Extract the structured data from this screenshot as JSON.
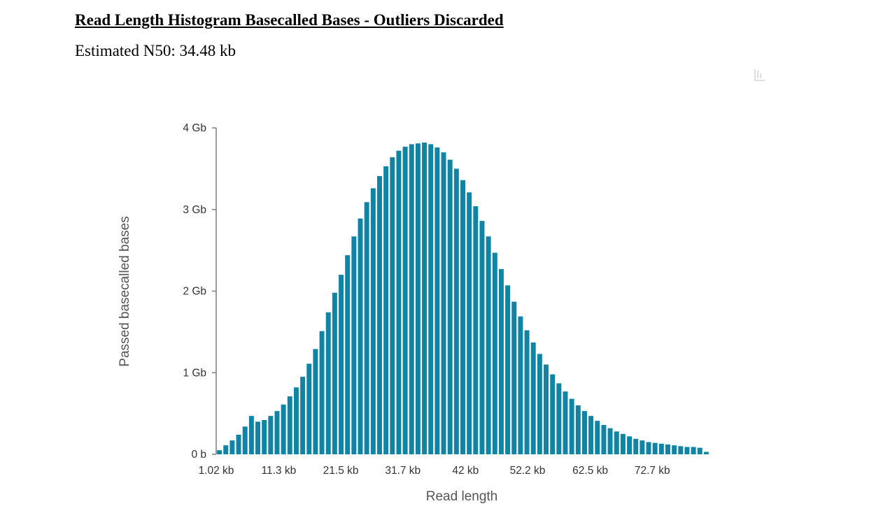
{
  "report": {
    "title": "Read Length Histogram Basecalled Bases - Outliers Discarded",
    "n50_label": "Estimated N50:",
    "n50_value": "34.48 kb"
  },
  "icons": {
    "corner_widget": "chart-tool-icon"
  },
  "colors": {
    "bar": "#0f84a4",
    "axis": "#7f7f7f"
  },
  "chart_data": {
    "type": "bar",
    "xlabel": "Read length",
    "ylabel": "Passed basecalled bases",
    "x_unit": "kb",
    "y_unit": "Gb",
    "ylim": [
      0,
      4
    ],
    "y_ticks": [
      {
        "value": 0,
        "label": "0 b"
      },
      {
        "value": 1,
        "label": "1 Gb"
      },
      {
        "value": 2,
        "label": "2 Gb"
      },
      {
        "value": 3,
        "label": "3 Gb"
      },
      {
        "value": 4,
        "label": "4 Gb"
      }
    ],
    "x_ticks": [
      {
        "value": 1.02,
        "label": "1.02 kb"
      },
      {
        "value": 11.3,
        "label": "11.3 kb"
      },
      {
        "value": 21.5,
        "label": "21.5 kb"
      },
      {
        "value": 31.7,
        "label": "31.7 kb"
      },
      {
        "value": 42,
        "label": "42 kb"
      },
      {
        "value": 52.2,
        "label": "52.2 kb"
      },
      {
        "value": 62.5,
        "label": "62.5 kb"
      },
      {
        "value": 72.7,
        "label": "72.7 kb"
      }
    ],
    "xlim": [
      1.02,
      82.1
    ],
    "values": [
      0.05,
      0.11,
      0.17,
      0.24,
      0.34,
      0.47,
      0.4,
      0.42,
      0.47,
      0.53,
      0.61,
      0.71,
      0.82,
      0.95,
      1.11,
      1.29,
      1.51,
      1.74,
      1.98,
      2.2,
      2.44,
      2.67,
      2.89,
      3.09,
      3.26,
      3.41,
      3.53,
      3.64,
      3.72,
      3.77,
      3.8,
      3.81,
      3.82,
      3.8,
      3.76,
      3.7,
      3.61,
      3.5,
      3.36,
      3.21,
      3.04,
      2.86,
      2.67,
      2.47,
      2.27,
      2.07,
      1.87,
      1.69,
      1.52,
      1.37,
      1.23,
      1.1,
      0.98,
      0.87,
      0.77,
      0.68,
      0.6,
      0.53,
      0.47,
      0.41,
      0.36,
      0.32,
      0.28,
      0.25,
      0.22,
      0.19,
      0.17,
      0.15,
      0.14,
      0.13,
      0.12,
      0.11,
      0.1,
      0.09,
      0.09,
      0.08,
      0.03
    ]
  }
}
